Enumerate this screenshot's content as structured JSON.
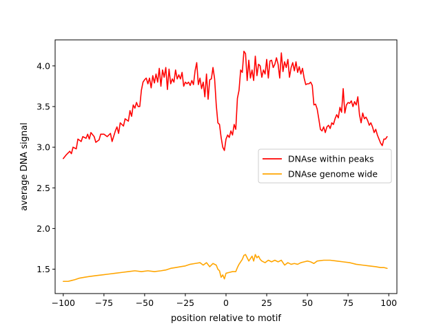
{
  "chart_data": {
    "type": "line",
    "title": "",
    "xlabel": "position relative to motif",
    "ylabel": "average DNA signal",
    "xlim": [
      -105,
      105
    ],
    "ylim": [
      1.2,
      4.32
    ],
    "x_ticks": [
      -100,
      -75,
      -50,
      -25,
      0,
      25,
      50,
      75,
      100
    ],
    "x_tick_labels": [
      "−100",
      "−75",
      "−50",
      "−25",
      "0",
      "25",
      "50",
      "75",
      "100"
    ],
    "y_ticks": [
      1.5,
      2.0,
      2.5,
      3.0,
      3.5,
      4.0
    ],
    "y_tick_labels": [
      "1.5",
      "2.0",
      "2.5",
      "3.0",
      "3.5",
      "4.0"
    ],
    "grid": false,
    "legend_position": "center-right",
    "series": [
      {
        "name": "DNAse within peaks",
        "color": "#ff0000",
        "points": [
          [
            -100,
            2.86
          ],
          [
            -98,
            2.91
          ],
          [
            -96,
            2.95
          ],
          [
            -95,
            2.92
          ],
          [
            -94,
            3.0
          ],
          [
            -92,
            2.98
          ],
          [
            -91,
            3.1
          ],
          [
            -89,
            3.07
          ],
          [
            -88,
            3.13
          ],
          [
            -86,
            3.11
          ],
          [
            -85,
            3.16
          ],
          [
            -84,
            3.1
          ],
          [
            -83,
            3.18
          ],
          [
            -81,
            3.13
          ],
          [
            -80,
            3.06
          ],
          [
            -78,
            3.09
          ],
          [
            -77,
            3.16
          ],
          [
            -75,
            3.16
          ],
          [
            -73,
            3.13
          ],
          [
            -71,
            3.17
          ],
          [
            -70,
            3.07
          ],
          [
            -68,
            3.2
          ],
          [
            -67,
            3.25
          ],
          [
            -66,
            3.17
          ],
          [
            -65,
            3.3
          ],
          [
            -63,
            3.26
          ],
          [
            -62,
            3.35
          ],
          [
            -60,
            3.32
          ],
          [
            -59,
            3.45
          ],
          [
            -58,
            3.38
          ],
          [
            -57,
            3.52
          ],
          [
            -56,
            3.48
          ],
          [
            -55,
            3.55
          ],
          [
            -54,
            3.5
          ],
          [
            -53,
            3.5
          ],
          [
            -52,
            3.7
          ],
          [
            -51,
            3.8
          ],
          [
            -50,
            3.83
          ],
          [
            -49,
            3.85
          ],
          [
            -48,
            3.78
          ],
          [
            -47,
            3.85
          ],
          [
            -46,
            3.73
          ],
          [
            -45,
            3.88
          ],
          [
            -44,
            3.79
          ],
          [
            -43,
            3.9
          ],
          [
            -42,
            3.8
          ],
          [
            -41,
            3.97
          ],
          [
            -40,
            3.75
          ],
          [
            -39,
            3.95
          ],
          [
            -38,
            3.86
          ],
          [
            -37,
            3.98
          ],
          [
            -36,
            3.71
          ],
          [
            -35,
            3.96
          ],
          [
            -34,
            3.78
          ],
          [
            -33,
            3.84
          ],
          [
            -32,
            3.8
          ],
          [
            -31,
            3.95
          ],
          [
            -30,
            3.84
          ],
          [
            -29,
            3.89
          ],
          [
            -28,
            3.84
          ],
          [
            -27,
            3.92
          ],
          [
            -26,
            3.75
          ],
          [
            -25,
            3.8
          ],
          [
            -24,
            3.78
          ],
          [
            -23,
            3.8
          ],
          [
            -22,
            3.76
          ],
          [
            -21,
            3.82
          ],
          [
            -20,
            3.77
          ],
          [
            -19,
            3.94
          ],
          [
            -18,
            4.04
          ],
          [
            -17,
            3.77
          ],
          [
            -16,
            3.85
          ],
          [
            -15,
            3.72
          ],
          [
            -14,
            3.8
          ],
          [
            -13,
            3.62
          ],
          [
            -12,
            3.9
          ],
          [
            -11,
            3.59
          ],
          [
            -10,
            3.83
          ],
          [
            -9,
            3.84
          ],
          [
            -8,
            3.98
          ],
          [
            -7,
            3.84
          ],
          [
            -6,
            3.52
          ],
          [
            -5,
            3.3
          ],
          [
            -4,
            3.28
          ],
          [
            -3,
            3.12
          ],
          [
            -2,
            3.0
          ],
          [
            -1,
            2.96
          ],
          [
            0,
            3.1
          ],
          [
            1,
            3.15
          ],
          [
            2,
            3.12
          ],
          [
            3,
            3.2
          ],
          [
            4,
            3.15
          ],
          [
            5,
            3.28
          ],
          [
            6,
            3.22
          ],
          [
            7,
            3.6
          ],
          [
            8,
            3.7
          ],
          [
            9,
            3.95
          ],
          [
            10,
            3.92
          ],
          [
            11,
            4.18
          ],
          [
            12,
            4.15
          ],
          [
            13,
            3.82
          ],
          [
            14,
            4.07
          ],
          [
            15,
            3.85
          ],
          [
            16,
            3.95
          ],
          [
            17,
            3.82
          ],
          [
            18,
            4.12
          ],
          [
            19,
            3.88
          ],
          [
            20,
            4.02
          ],
          [
            21,
            4.0
          ],
          [
            22,
            3.86
          ],
          [
            23,
            3.95
          ],
          [
            24,
            3.9
          ],
          [
            25,
            4.08
          ],
          [
            26,
            3.85
          ],
          [
            27,
            4.06
          ],
          [
            28,
            4.07
          ],
          [
            29,
            3.98
          ],
          [
            30,
            4.02
          ],
          [
            31,
            4.1
          ],
          [
            32,
            4.02
          ],
          [
            33,
            3.85
          ],
          [
            34,
            4.16
          ],
          [
            35,
            3.93
          ],
          [
            36,
            4.05
          ],
          [
            37,
            3.98
          ],
          [
            38,
            4.08
          ],
          [
            39,
            3.86
          ],
          [
            40,
            3.98
          ],
          [
            41,
            4.04
          ],
          [
            42,
            3.94
          ],
          [
            43,
            4.05
          ],
          [
            44,
            3.92
          ],
          [
            45,
            3.99
          ],
          [
            46,
            3.9
          ],
          [
            47,
            3.97
          ],
          [
            48,
            3.85
          ],
          [
            49,
            3.77
          ],
          [
            50,
            3.78
          ],
          [
            51,
            3.78
          ],
          [
            52,
            3.8
          ],
          [
            53,
            3.76
          ],
          [
            54,
            3.52
          ],
          [
            55,
            3.53
          ],
          [
            56,
            3.47
          ],
          [
            57,
            3.35
          ],
          [
            58,
            3.22
          ],
          [
            59,
            3.2
          ],
          [
            60,
            3.25
          ],
          [
            61,
            3.18
          ],
          [
            62,
            3.25
          ],
          [
            63,
            3.27
          ],
          [
            64,
            3.23
          ],
          [
            65,
            3.3
          ],
          [
            66,
            3.28
          ],
          [
            67,
            3.35
          ],
          [
            68,
            3.4
          ],
          [
            69,
            3.36
          ],
          [
            70,
            3.49
          ],
          [
            71,
            3.43
          ],
          [
            72,
            3.72
          ],
          [
            73,
            3.42
          ],
          [
            74,
            3.52
          ],
          [
            75,
            3.55
          ],
          [
            76,
            3.54
          ],
          [
            77,
            3.57
          ],
          [
            78,
            3.5
          ],
          [
            79,
            3.56
          ],
          [
            80,
            3.52
          ],
          [
            81,
            3.62
          ],
          [
            82,
            3.4
          ],
          [
            83,
            3.3
          ],
          [
            84,
            3.42
          ],
          [
            85,
            3.35
          ],
          [
            86,
            3.37
          ],
          [
            87,
            3.33
          ],
          [
            88,
            3.27
          ],
          [
            89,
            3.3
          ],
          [
            90,
            3.25
          ],
          [
            91,
            3.18
          ],
          [
            92,
            3.22
          ],
          [
            93,
            3.15
          ],
          [
            94,
            3.1
          ],
          [
            95,
            3.05
          ],
          [
            96,
            3.02
          ],
          [
            97,
            3.1
          ],
          [
            98,
            3.1
          ],
          [
            99,
            3.13
          ]
        ]
      },
      {
        "name": "DNAse genome wide",
        "color": "#ffa500",
        "points": [
          [
            -100,
            1.35
          ],
          [
            -97,
            1.35
          ],
          [
            -95,
            1.36
          ],
          [
            -93,
            1.37
          ],
          [
            -90,
            1.39
          ],
          [
            -87,
            1.4
          ],
          [
            -84,
            1.41
          ],
          [
            -80,
            1.42
          ],
          [
            -76,
            1.43
          ],
          [
            -72,
            1.44
          ],
          [
            -68,
            1.45
          ],
          [
            -64,
            1.46
          ],
          [
            -60,
            1.47
          ],
          [
            -56,
            1.48
          ],
          [
            -52,
            1.47
          ],
          [
            -48,
            1.48
          ],
          [
            -44,
            1.47
          ],
          [
            -40,
            1.48
          ],
          [
            -37,
            1.49
          ],
          [
            -34,
            1.51
          ],
          [
            -31,
            1.52
          ],
          [
            -28,
            1.53
          ],
          [
            -25,
            1.54
          ],
          [
            -22,
            1.56
          ],
          [
            -19,
            1.57
          ],
          [
            -16,
            1.58
          ],
          [
            -14,
            1.55
          ],
          [
            -12,
            1.58
          ],
          [
            -10,
            1.53
          ],
          [
            -8,
            1.57
          ],
          [
            -6,
            1.55
          ],
          [
            -5,
            1.5
          ],
          [
            -4,
            1.48
          ],
          [
            -3,
            1.4
          ],
          [
            -2,
            1.43
          ],
          [
            -1,
            1.38
          ],
          [
            0,
            1.45
          ],
          [
            2,
            1.46
          ],
          [
            4,
            1.47
          ],
          [
            6,
            1.47
          ],
          [
            7,
            1.52
          ],
          [
            8,
            1.56
          ],
          [
            10,
            1.62
          ],
          [
            11,
            1.67
          ],
          [
            12,
            1.68
          ],
          [
            13,
            1.64
          ],
          [
            14,
            1.6
          ],
          [
            15,
            1.63
          ],
          [
            16,
            1.66
          ],
          [
            17,
            1.6
          ],
          [
            18,
            1.68
          ],
          [
            19,
            1.64
          ],
          [
            20,
            1.66
          ],
          [
            21,
            1.62
          ],
          [
            22,
            1.6
          ],
          [
            24,
            1.58
          ],
          [
            26,
            1.61
          ],
          [
            28,
            1.59
          ],
          [
            30,
            1.61
          ],
          [
            32,
            1.59
          ],
          [
            34,
            1.61
          ],
          [
            36,
            1.55
          ],
          [
            38,
            1.58
          ],
          [
            40,
            1.56
          ],
          [
            42,
            1.57
          ],
          [
            44,
            1.56
          ],
          [
            46,
            1.58
          ],
          [
            48,
            1.59
          ],
          [
            50,
            1.6
          ],
          [
            52,
            1.59
          ],
          [
            54,
            1.57
          ],
          [
            56,
            1.6
          ],
          [
            60,
            1.61
          ],
          [
            64,
            1.61
          ],
          [
            68,
            1.6
          ],
          [
            72,
            1.59
          ],
          [
            76,
            1.58
          ],
          [
            80,
            1.56
          ],
          [
            84,
            1.55
          ],
          [
            88,
            1.54
          ],
          [
            92,
            1.53
          ],
          [
            95,
            1.52
          ],
          [
            97,
            1.52
          ],
          [
            99,
            1.51
          ]
        ]
      }
    ]
  }
}
